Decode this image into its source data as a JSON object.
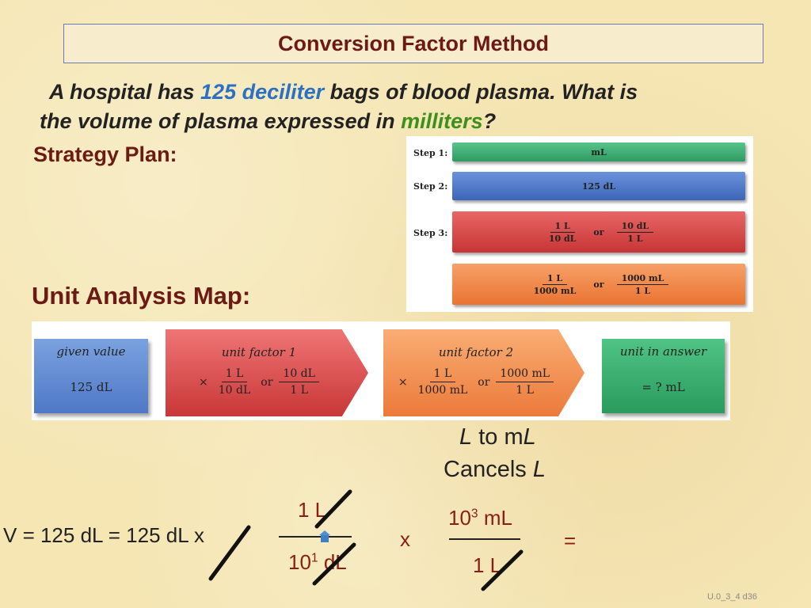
{
  "title": "Conversion Factor Method",
  "question": {
    "part1": "A hospital has ",
    "highlight_value": "125 deciliter",
    "part2": " bags of blood plasma. What is",
    "part3": "the volume of plasma expressed in ",
    "highlight_unit": "milliters",
    "part4": "?"
  },
  "strategy_heading": "Strategy Plan:",
  "strategy": {
    "steps": [
      {
        "label": "Step 1:",
        "text": "mL"
      },
      {
        "label": "Step 2:",
        "text": "125 dL"
      },
      {
        "label": "Step 3:",
        "f1_num": "1 L",
        "f1_den": "10 dL",
        "or": "or",
        "f2_num": "10 dL",
        "f2_den": "1 L"
      },
      {
        "label": "",
        "f1_num": "1 L",
        "f1_den": "1000 mL",
        "or": "or",
        "f2_num": "1000 mL",
        "f2_den": "1 L"
      }
    ]
  },
  "map_heading": "Unit Analysis Map:",
  "map": {
    "given": {
      "title": "given value",
      "value": "125 dL"
    },
    "factor1": {
      "title": "unit factor 1",
      "times": "×",
      "f1_num": "1 L",
      "f1_den": "10 dL",
      "or": "or",
      "f2_num": "10 dL",
      "f2_den": "1 L"
    },
    "factor2": {
      "title": "unit factor 2",
      "times": "×",
      "f1_num": "1 L",
      "f1_den": "1000 mL",
      "or": "or",
      "f2_num": "1000 mL",
      "f2_den": "1 L"
    },
    "answer": {
      "title": "unit in answer",
      "value": "=  ? mL"
    }
  },
  "note": {
    "line1_a": "L",
    "line1_b": " to m",
    "line1_c": "L",
    "line2_a": "Cancels ",
    "line2_b": "L"
  },
  "equation": {
    "lhs": "V = 125 dL = 125 dL x",
    "f1_num": "1 L",
    "f1_den_base": "10",
    "f1_den_exp": "1",
    "f1_den_unit": " dL",
    "x": "x",
    "f2_num_base": "10",
    "f2_num_exp": "3",
    "f2_num_unit": " mL",
    "f2_den": "1 L",
    "equals": "="
  },
  "footer_code": "U.0_3_4 d36",
  "colors": {
    "title_text": "#6b1a14",
    "highlight_blue": "#2b70c2",
    "highlight_green": "#3e8f1c",
    "cancel_line": "#111111"
  }
}
